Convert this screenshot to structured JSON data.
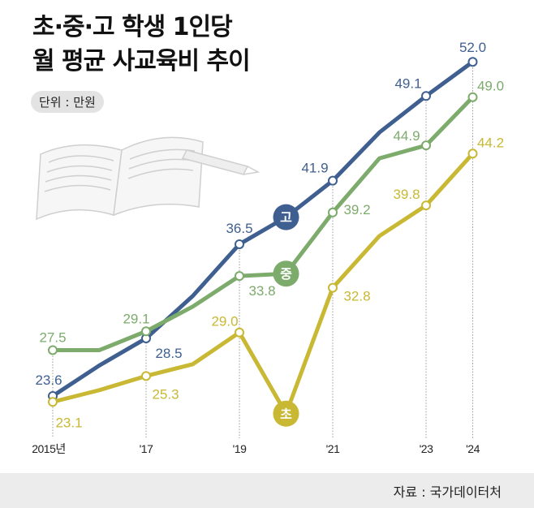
{
  "chart_data": {
    "type": "line",
    "title": "초·중·고 학생 1인당",
    "subtitle": "월 평균 사교육비 추이",
    "unit": "단위 : 만원",
    "source": "자료 : 국가데이터처",
    "x": [
      2015,
      2016,
      2017,
      2018,
      2019,
      2020,
      2021,
      2022,
      2023,
      2024
    ],
    "tick_labels": [
      {
        "year": 2015,
        "label": "2015년"
      },
      {
        "year": 2017,
        "label": "'17"
      },
      {
        "year": 2019,
        "label": "'19"
      },
      {
        "year": 2021,
        "label": "'21"
      },
      {
        "year": 2023,
        "label": "'23"
      },
      {
        "year": 2024,
        "label": "'24"
      }
    ],
    "labeled_years": [
      2015,
      2017,
      2019,
      2021,
      2023,
      2024
    ],
    "series": [
      {
        "name": "고",
        "color": "#3f5f90",
        "values": [
          23.6,
          26.2,
          28.5,
          32.1,
          36.5,
          38.8,
          41.9,
          46.0,
          49.1,
          52.0
        ]
      },
      {
        "name": "중",
        "color": "#7dab6c",
        "values": [
          27.5,
          27.5,
          29.1,
          31.2,
          33.8,
          34.0,
          39.2,
          43.8,
          44.9,
          49.0
        ]
      },
      {
        "name": "초",
        "color": "#c8b833",
        "values": [
          23.1,
          24.1,
          25.3,
          26.3,
          29.0,
          22.1,
          32.8,
          37.2,
          39.8,
          44.2
        ]
      }
    ],
    "series_badge_year": 2020,
    "grid": "dotted vertical at labeled years",
    "legend": "inline badges"
  }
}
